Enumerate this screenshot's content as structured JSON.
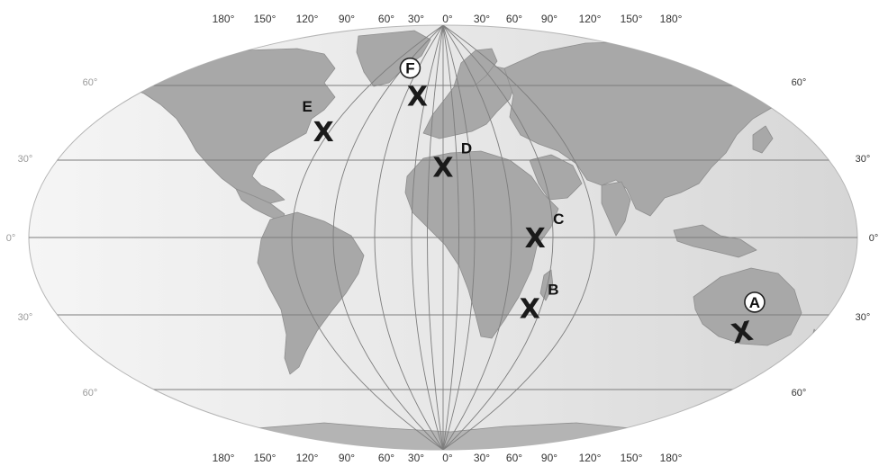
{
  "map": {
    "longitude_labels_top": [
      "180°",
      "150°",
      "120°",
      "90°",
      "60°",
      "30°",
      "0°",
      "30°",
      "60°",
      "90°",
      "120°",
      "150°",
      "180°"
    ],
    "longitude_labels_bottom": [
      "180°",
      "150°",
      "120°",
      "90°",
      "60°",
      "30°",
      "0°",
      "30°",
      "60°",
      "90°",
      "120°",
      "150°",
      "180°"
    ],
    "latitude_labels_left": [
      "60°",
      "30°",
      "0°",
      "30°",
      "60°"
    ],
    "latitude_labels_right": [
      "60°",
      "30°",
      "0°",
      "30°",
      "60°"
    ],
    "marker_glyph": "X",
    "sites": [
      {
        "label": "A",
        "circled": true,
        "lat": -40,
        "lon": 175
      },
      {
        "label": "B",
        "circled": false,
        "lat": -30,
        "lon": 70
      },
      {
        "label": "C",
        "circled": false,
        "lat": 0,
        "lon": 70
      },
      {
        "label": "D",
        "circled": false,
        "lat": 30,
        "lon": 30
      },
      {
        "label": "E",
        "circled": false,
        "lat": 45,
        "lon": -30
      },
      {
        "label": "F",
        "circled": true,
        "lat": 60,
        "lon": 15
      }
    ],
    "colors": {
      "ocean_light": "#f4f4f4",
      "ocean_dark": "#d7d7d7",
      "land": "#a8a8a8",
      "graticule": "#7d7d7d",
      "marker": "#1a1a1a"
    }
  }
}
